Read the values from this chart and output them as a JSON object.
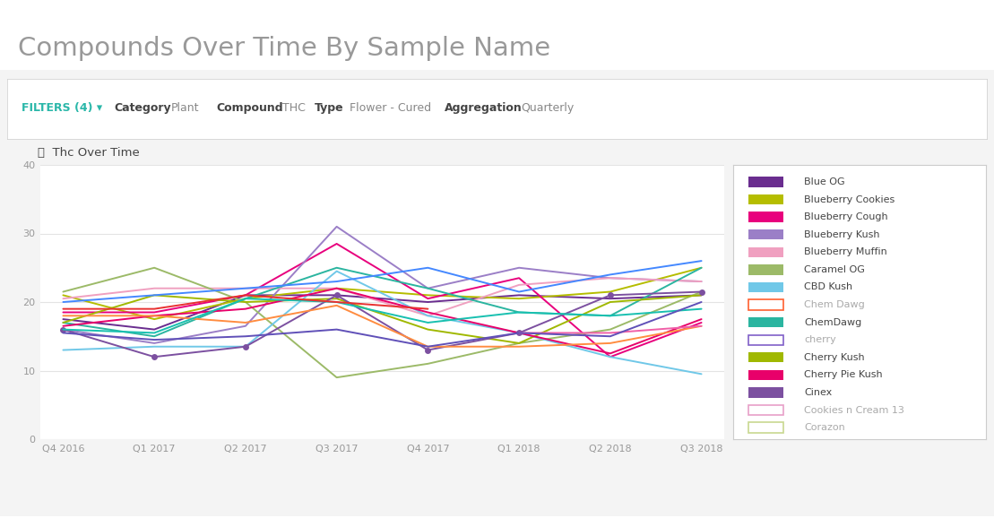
{
  "title": "Compounds Over Time By Sample Name",
  "subtitle": "Thc Over Time",
  "x_labels": [
    "Q4 2016",
    "Q1 2017",
    "Q2 2017",
    "Q3 2017",
    "Q4 2017",
    "Q1 2018",
    "Q2 2018",
    "Q3 2018"
  ],
  "ylim": [
    0,
    40
  ],
  "yticks": [
    0,
    10,
    20,
    30,
    40
  ],
  "bg_white": "#ffffff",
  "bg_panel": "#f4f4f4",
  "teal": "#2ab7a9",
  "title_color": "#888888",
  "series": [
    {
      "name": "Blue OG",
      "color": "#6a2d8f",
      "data": [
        17.5,
        16.0,
        21.0,
        21.0,
        20.0,
        21.0,
        20.5,
        21.0
      ],
      "marker": null
    },
    {
      "name": "Blueberry Cookies",
      "color": "#b5bd00",
      "data": [
        21.0,
        17.5,
        20.5,
        22.0,
        21.0,
        20.5,
        21.5,
        25.0
      ],
      "marker": null
    },
    {
      "name": "Blueberry Cough",
      "color": "#e8007d",
      "data": [
        18.5,
        18.5,
        21.0,
        28.5,
        20.5,
        23.5,
        12.0,
        17.0
      ],
      "marker": null
    },
    {
      "name": "Blueberry Kush",
      "color": "#9b7fc7",
      "data": [
        16.0,
        14.0,
        16.5,
        31.0,
        22.0,
        25.0,
        23.5,
        23.0
      ],
      "marker": null
    },
    {
      "name": "Blueberry Muffin",
      "color": "#f0a0c0",
      "data": [
        20.5,
        22.0,
        22.0,
        22.0,
        18.0,
        22.5,
        23.5,
        23.0
      ],
      "marker": null
    },
    {
      "name": "Caramel OG",
      "color": "#9cba68",
      "data": [
        21.5,
        25.0,
        20.0,
        9.0,
        11.0,
        14.0,
        16.0,
        21.5
      ],
      "marker": null
    },
    {
      "name": "CBD Kush",
      "color": "#70c8e8",
      "data": [
        13.0,
        13.5,
        13.5,
        24.5,
        18.0,
        15.5,
        12.0,
        9.5
      ],
      "marker": null
    },
    {
      "name": "ChemDawg",
      "color": "#2bb5a0",
      "data": [
        17.0,
        15.0,
        20.5,
        25.0,
        22.0,
        18.5,
        18.0,
        25.0
      ],
      "marker": null
    },
    {
      "name": "Cherry Kush",
      "color": "#a0b800",
      "data": [
        17.0,
        21.0,
        20.0,
        20.5,
        16.0,
        14.0,
        20.0,
        21.0
      ],
      "marker": null
    },
    {
      "name": "Cherry Pie Kush",
      "color": "#e8006a",
      "data": [
        16.5,
        18.0,
        19.0,
        22.0,
        18.5,
        15.5,
        12.5,
        17.5
      ],
      "marker": null
    },
    {
      "name": "Cinex",
      "color": "#7c50a0",
      "data": [
        16.0,
        12.0,
        13.5,
        21.0,
        13.0,
        15.5,
        21.0,
        21.5
      ],
      "marker": "o"
    },
    {
      "name": "line_orange",
      "color": "#ff8c40",
      "data": [
        18.0,
        18.0,
        17.0,
        19.5,
        13.5,
        13.5,
        14.0,
        16.5
      ],
      "marker": null
    },
    {
      "name": "line_blue2",
      "color": "#4488ff",
      "data": [
        20.0,
        21.0,
        22.0,
        23.0,
        25.0,
        21.5,
        24.0,
        26.0
      ],
      "marker": null
    },
    {
      "name": "line_teal2",
      "color": "#18c0b0",
      "data": [
        16.0,
        15.5,
        20.5,
        20.0,
        17.0,
        18.5,
        18.0,
        19.0
      ],
      "marker": null
    },
    {
      "name": "line_red",
      "color": "#e83030",
      "data": [
        19.0,
        19.0,
        21.0,
        20.0,
        19.0,
        null,
        null,
        null
      ],
      "marker": null
    },
    {
      "name": "line_pink2",
      "color": "#f060a8",
      "data": [
        null,
        null,
        null,
        null,
        null,
        15.5,
        15.5,
        16.5
      ],
      "marker": null
    },
    {
      "name": "line_purple2",
      "color": "#6050b8",
      "data": [
        15.5,
        14.5,
        15.0,
        16.0,
        13.5,
        15.5,
        15.0,
        20.0
      ],
      "marker": null
    }
  ],
  "legend_items": [
    {
      "name": "Blue OG",
      "color": "#6a2d8f",
      "outline": false,
      "muted": false
    },
    {
      "name": "Blueberry Cookies",
      "color": "#b5bd00",
      "outline": false,
      "muted": false
    },
    {
      "name": "Blueberry Cough",
      "color": "#e8007d",
      "outline": false,
      "muted": false
    },
    {
      "name": "Blueberry Kush",
      "color": "#9b7fc7",
      "outline": false,
      "muted": false
    },
    {
      "name": "Blueberry Muffin",
      "color": "#f0a0c0",
      "outline": false,
      "muted": false
    },
    {
      "name": "Caramel OG",
      "color": "#9cba68",
      "outline": false,
      "muted": false
    },
    {
      "name": "CBD Kush",
      "color": "#70c8e8",
      "outline": false,
      "muted": false
    },
    {
      "name": "Chem Dawg",
      "color": "#ff6030",
      "outline": true,
      "muted": true
    },
    {
      "name": "ChemDawg",
      "color": "#2bb5a0",
      "outline": false,
      "muted": false
    },
    {
      "name": "cherry",
      "color": "#8060c8",
      "outline": true,
      "muted": true
    },
    {
      "name": "Cherry Kush",
      "color": "#a0b800",
      "outline": false,
      "muted": false
    },
    {
      "name": "Cherry Pie Kush",
      "color": "#e8006a",
      "outline": false,
      "muted": false
    },
    {
      "name": "Cinex",
      "color": "#7c50a0",
      "outline": false,
      "muted": false
    },
    {
      "name": "Cookies n Cream 13",
      "color": "#e8a0c8",
      "outline": true,
      "muted": true
    },
    {
      "name": "Corazon",
      "color": "#c8d890",
      "outline": true,
      "muted": true
    }
  ],
  "filter_items": [
    {
      "label": "FILTERS (4) ▾",
      "value": null,
      "label_bold": true,
      "label_teal": true
    },
    {
      "label": "Category",
      "value": "Plant",
      "label_bold": false,
      "label_teal": false
    },
    {
      "label": "Compound",
      "value": "THC",
      "label_bold": true,
      "label_teal": false
    },
    {
      "label": "Type",
      "value": "Flower - Cured",
      "label_bold": true,
      "label_teal": false
    },
    {
      "label": "Aggregation",
      "value": "Quarterly",
      "label_bold": true,
      "label_teal": false
    }
  ]
}
